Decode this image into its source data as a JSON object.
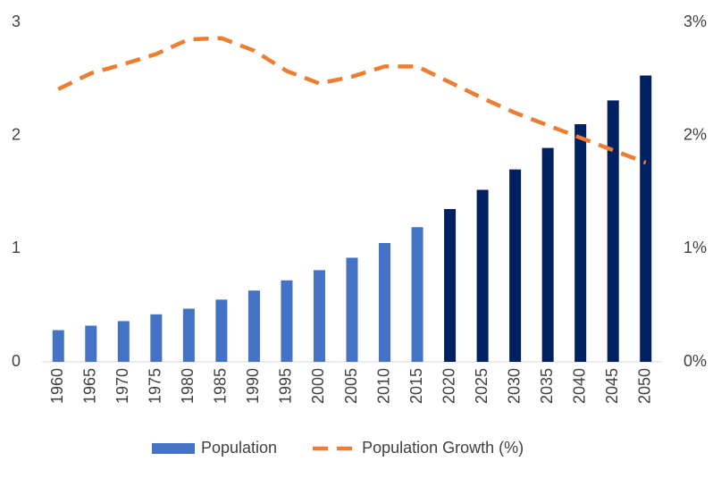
{
  "chart_data": {
    "type": "bar_line",
    "categories": [
      "1960",
      "1965",
      "1970",
      "1975",
      "1980",
      "1985",
      "1990",
      "1995",
      "2000",
      "2005",
      "2010",
      "2015",
      "2020",
      "2025",
      "2030",
      "2035",
      "2040",
      "2045",
      "2050"
    ],
    "series": [
      {
        "name": "Population",
        "type": "bar",
        "color": "#4472c4",
        "bar_colors": [
          "#4472c4",
          "#4472c4",
          "#4472c4",
          "#4472c4",
          "#4472c4",
          "#4472c4",
          "#4472c4",
          "#4472c4",
          "#4472c4",
          "#4472c4",
          "#4472c4",
          "#4472c4",
          "#002060",
          "#002060",
          "#002060",
          "#002060",
          "#002060",
          "#002060",
          "#002060"
        ],
        "values": [
          0.28,
          0.32,
          0.36,
          0.42,
          0.47,
          0.55,
          0.63,
          0.72,
          0.81,
          0.92,
          1.05,
          1.19,
          1.35,
          1.52,
          1.7,
          1.89,
          2.1,
          2.31,
          2.53
        ]
      },
      {
        "name": "Population Growth (%)",
        "type": "line",
        "axis": "y2",
        "color": "#ed7d31",
        "dashed": true,
        "values": [
          2.41,
          2.55,
          2.63,
          2.72,
          2.85,
          2.86,
          2.75,
          2.57,
          2.46,
          2.52,
          2.61,
          2.61,
          2.47,
          2.33,
          2.2,
          2.09,
          1.98,
          1.87,
          1.76
        ]
      }
    ],
    "ylim": [
      0,
      3
    ],
    "yticks": [
      0,
      1,
      2,
      3
    ],
    "y2lim": [
      0,
      3
    ],
    "y2ticks": [
      {
        "value": 0,
        "label": "0%"
      },
      {
        "value": 1,
        "label": "1%"
      },
      {
        "value": 2,
        "label": "2%"
      },
      {
        "value": 3,
        "label": "3%"
      }
    ],
    "grid": false,
    "legend": "bottom"
  }
}
